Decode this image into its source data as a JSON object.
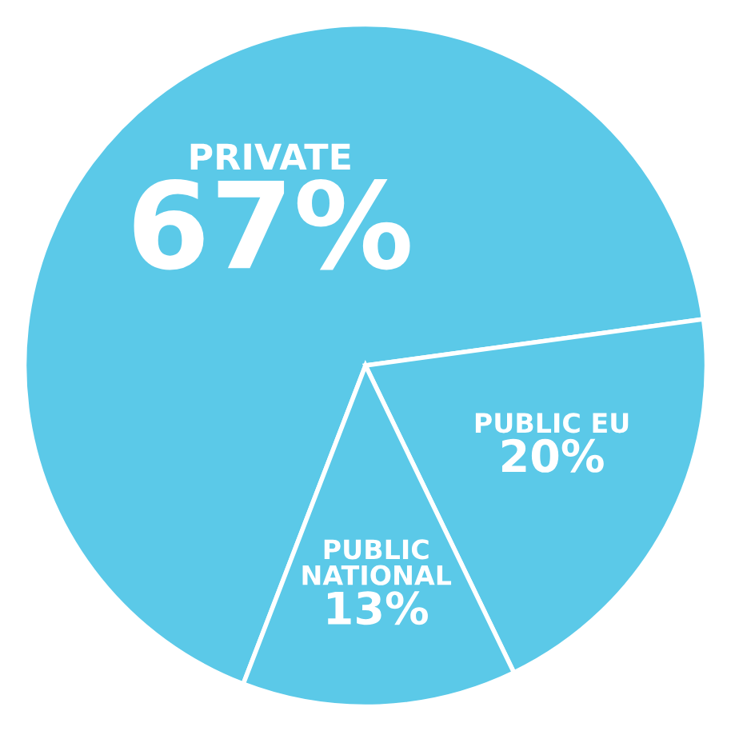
{
  "chart_data": {
    "type": "pie",
    "categories": [
      "PRIVATE",
      "PUBLIC EU",
      "PUBLIC NATIONAL"
    ],
    "values": [
      67,
      20,
      13
    ],
    "colors": [
      "#5bc9e8",
      "#5bc9e8",
      "#5bc9e8"
    ],
    "value_labels": [
      "67%",
      "20%",
      "13%"
    ]
  }
}
